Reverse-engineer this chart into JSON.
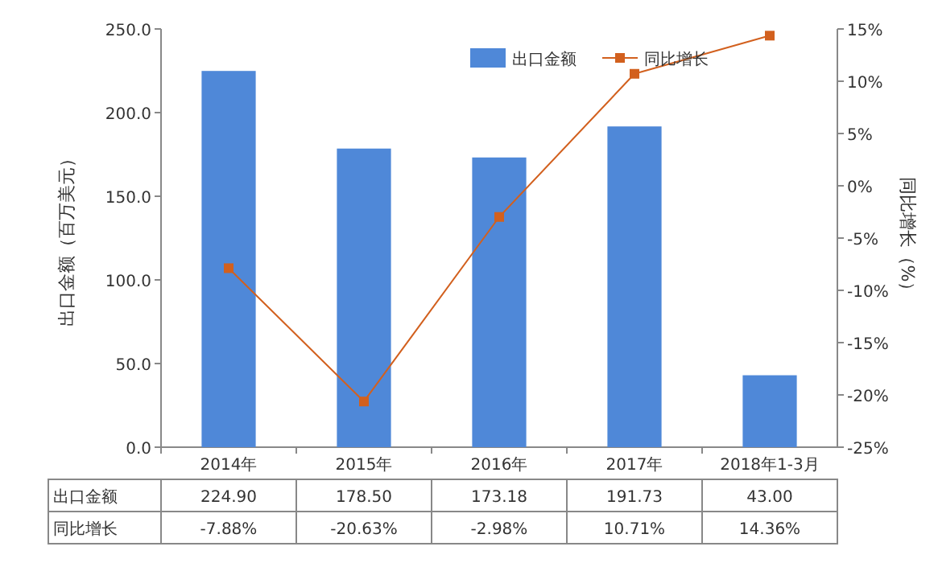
{
  "chart_data": {
    "type": "bar",
    "categories": [
      "2014年",
      "2015年",
      "2016年",
      "2017年",
      "2018年1-3月"
    ],
    "ylabel": "出口金额（百万美元）",
    "y2label": "同比增长（%）",
    "ylim": [
      0,
      250
    ],
    "yticks": [
      {
        "value": 0,
        "label": "0.0"
      },
      {
        "value": 50,
        "label": "50.0"
      },
      {
        "value": 100,
        "label": "100.0"
      },
      {
        "value": 150,
        "label": "150.0"
      },
      {
        "value": 200,
        "label": "200.0"
      },
      {
        "value": 250,
        "label": "250.0"
      }
    ],
    "y2lim": [
      -25,
      15
    ],
    "y2ticks": [
      {
        "value": -25,
        "label": "-25%"
      },
      {
        "value": -20,
        "label": "-20%"
      },
      {
        "value": -15,
        "label": "-15%"
      },
      {
        "value": -10,
        "label": "-10%"
      },
      {
        "value": -5,
        "label": "-5%"
      },
      {
        "value": 0,
        "label": "0%"
      },
      {
        "value": 5,
        "label": "5%"
      },
      {
        "value": 10,
        "label": "10%"
      },
      {
        "value": 15,
        "label": "15%"
      }
    ],
    "legend": "top right",
    "marker": "square",
    "series": [
      {
        "name": "出口金额",
        "color": "#4f88d8",
        "values": [
          224.9,
          178.5,
          173.18,
          191.73,
          43.0
        ],
        "value_labels": [
          "224.90",
          "178.50",
          "173.18",
          "191.73",
          "43.00"
        ]
      },
      {
        "name": "同比增长",
        "type": "line",
        "axis": "y2",
        "color": "#d2601e",
        "values": [
          -7.88,
          -20.63,
          -2.98,
          10.71,
          14.36
        ],
        "value_labels": [
          "-7.88%",
          "-20.63%",
          "-2.98%",
          "10.71%",
          "14.36%"
        ]
      }
    ]
  }
}
